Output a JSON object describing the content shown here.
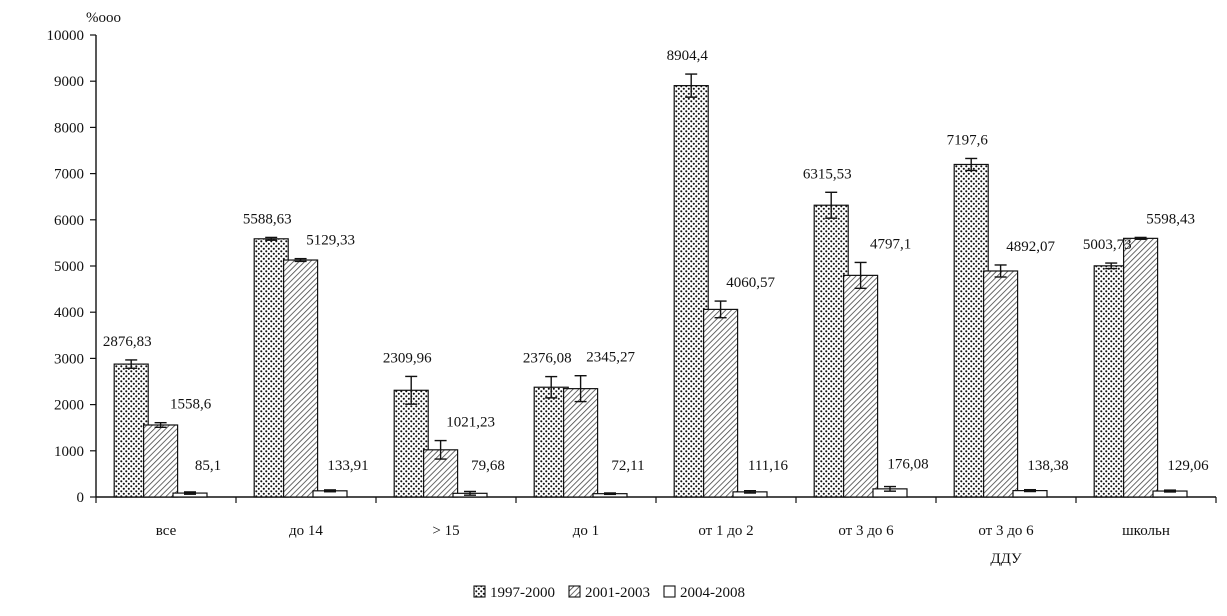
{
  "chart_data": {
    "type": "bar",
    "title": "",
    "ylabel": "%ooo",
    "xlabel": "",
    "ylim": [
      0,
      10000
    ],
    "yticks": [
      0,
      1000,
      2000,
      3000,
      4000,
      5000,
      6000,
      7000,
      8000,
      9000,
      10000
    ],
    "categories": [
      "все",
      "до 14",
      "> 15",
      "до 1",
      "от 1 до 2",
      "от 3 до 6",
      "от 3 до 6",
      "школьн"
    ],
    "category_sublabels": [
      "",
      "",
      "",
      "",
      "",
      "",
      "ДДУ",
      ""
    ],
    "series": [
      {
        "name": "1997-2000",
        "values": [
          2876.83,
          5588.63,
          2309.96,
          2376.08,
          8904.4,
          6315.53,
          7197.6,
          5003.73
        ],
        "labels": [
          "2876,83",
          "5588,63",
          "2309,96",
          "2376,08",
          "8904,4",
          "6315,53",
          "7197,6",
          "5003,73"
        ],
        "errors": [
          90,
          30,
          300,
          230,
          250,
          280,
          130,
          60
        ],
        "pattern": "dots"
      },
      {
        "name": "2001-2003",
        "values": [
          1558.6,
          5129.33,
          1021.23,
          2345.27,
          4060.57,
          4797.1,
          4892.07,
          5598.43
        ],
        "labels": [
          "1558,6",
          "5129,33",
          "1021,23",
          "2345,27",
          "4060,57",
          "4797,1",
          "4892,07",
          "5598,43"
        ],
        "errors": [
          50,
          30,
          200,
          280,
          180,
          280,
          130,
          20
        ],
        "pattern": "hatch"
      },
      {
        "name": "2004-2008",
        "values": [
          85.1,
          133.91,
          79.68,
          72.11,
          111.16,
          176.08,
          138.38,
          129.06
        ],
        "labels": [
          "85,1",
          "133,91",
          "79,68",
          "72,11",
          "111,16",
          "176,08",
          "138,38",
          "129,06"
        ],
        "errors": [
          25,
          20,
          40,
          15,
          25,
          50,
          20,
          20
        ],
        "pattern": "empty"
      }
    ],
    "legend_position": "bottom",
    "grid": false
  }
}
